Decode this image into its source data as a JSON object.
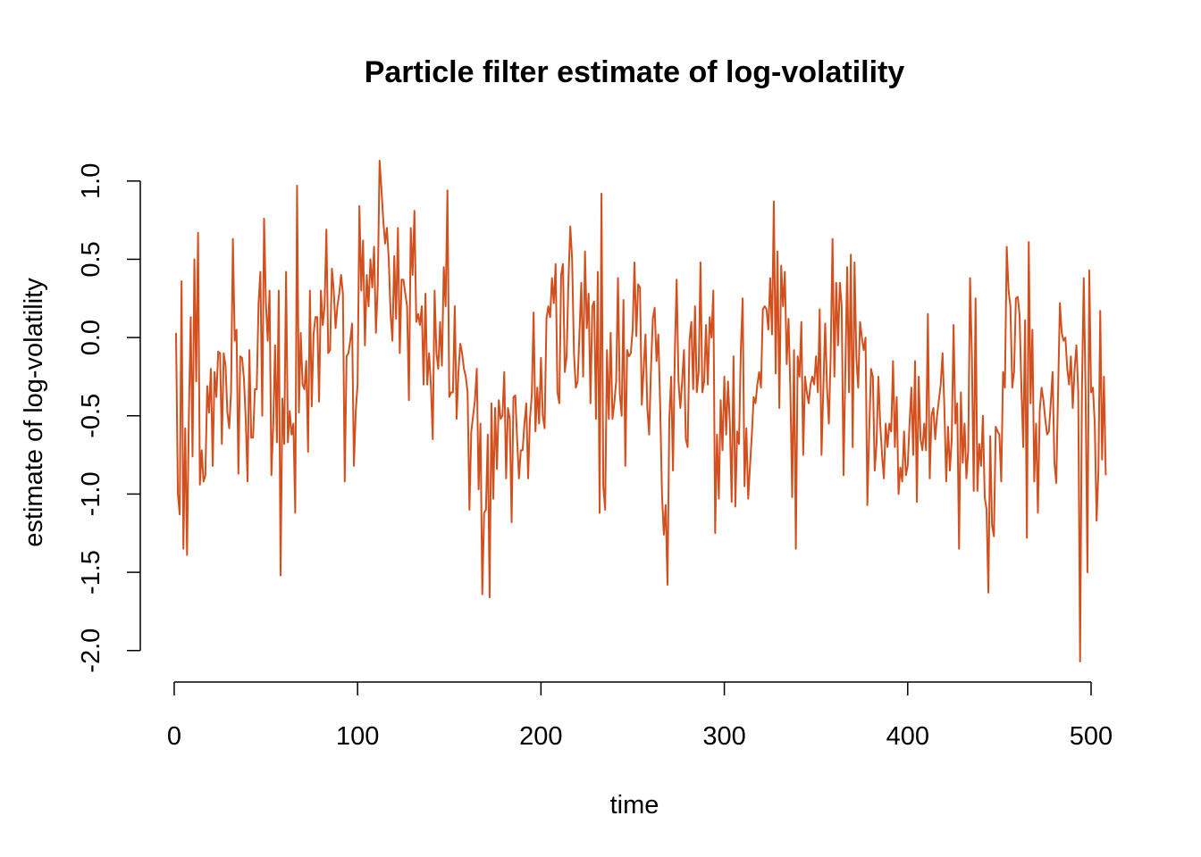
{
  "chart_data": {
    "type": "line",
    "title": "Particle filter estimate of log-volatility",
    "xlabel": "time",
    "ylabel": "estimate of log-volatility",
    "xlim": [
      1,
      500
    ],
    "ylim": [
      -2.07,
      1.13
    ],
    "x_ticks": [
      0,
      100,
      200,
      300,
      400,
      500
    ],
    "x_tick_labels": [
      "0",
      "100",
      "200",
      "300",
      "400",
      "500"
    ],
    "y_ticks": [
      -2.0,
      -1.5,
      -1.0,
      -0.5,
      0.0,
      0.5,
      1.0
    ],
    "y_tick_labels": [
      "-2.0",
      "-1.5",
      "-1.0",
      "-0.5",
      "0.0",
      "0.5",
      "1.0"
    ],
    "grid": false,
    "legend": "none",
    "series": [
      {
        "color": "#D2501E",
        "x_start": 1,
        "x_step": 1,
        "values": [
          0.03,
          -1.0,
          -1.13,
          0.36,
          -1.35,
          -0.58,
          -1.39,
          -0.5,
          0.13,
          -0.76,
          0.5,
          -0.28,
          0.67,
          -0.94,
          -0.72,
          -0.92,
          -0.88,
          -0.31,
          -0.48,
          -0.2,
          -0.82,
          -0.22,
          -0.38,
          -0.09,
          -0.1,
          -0.68,
          -0.1,
          -0.18,
          -0.48,
          -0.58,
          -0.35,
          0.63,
          -0.02,
          0.05,
          -0.87,
          -0.12,
          -0.13,
          -0.26,
          -0.52,
          -0.92,
          -0.08,
          -0.64,
          -0.64,
          -0.33,
          -0.33,
          0.22,
          0.42,
          -0.5,
          0.76,
          0.22,
          -0.02,
          0.3,
          -0.88,
          -0.56,
          -0.05,
          -0.67,
          0.3,
          -1.52,
          -0.39,
          -0.68,
          0.42,
          -0.67,
          -0.47,
          -0.62,
          -0.55,
          -1.12,
          0.97,
          -0.48,
          0.03,
          -0.3,
          -0.33,
          -0.15,
          -0.73,
          0.3,
          -0.44,
          0.02,
          0.13,
          0.13,
          -0.41,
          0.3,
          0.08,
          0.2,
          0.69,
          -0.1,
          -0.08,
          0.44,
          0.3,
          0.06,
          0.2,
          0.28,
          0.4,
          0.28,
          -0.92,
          -0.12,
          -0.1,
          -0.02,
          0.09,
          -0.82,
          -0.47,
          -0.3,
          0.84,
          0.3,
          0.62,
          -0.05,
          0.4,
          0.2,
          0.5,
          0.32,
          0.58,
          0.03,
          0.33,
          1.13,
          0.95,
          0.75,
          0.6,
          0.7,
          0.5,
          0.15,
          -0.02,
          0.52,
          0.12,
          0.7,
          -0.1,
          0.37,
          0.37,
          0.28,
          0.2,
          -0.4,
          0.7,
          0.4,
          0.81,
          0.1,
          0.15,
          0.08,
          0.2,
          -0.3,
          0.28,
          -0.3,
          -0.1,
          -0.31,
          -0.65,
          0.3,
          -0.1,
          -0.2,
          0.1,
          -0.18,
          0.45,
          0.2,
          0.94,
          -0.38,
          -0.35,
          -0.35,
          0.2,
          -0.52,
          -0.22,
          -0.04,
          -0.1,
          -0.2,
          -0.25,
          -0.35,
          -1.1,
          -0.6,
          -0.5,
          -0.4,
          -0.2,
          -0.97,
          -0.55,
          -1.64,
          -1.12,
          -1.1,
          -0.62,
          -1.66,
          -0.42,
          -1.03,
          -0.45,
          -0.84,
          -0.4,
          -0.52,
          -0.5,
          -0.22,
          -0.9,
          -0.45,
          -0.52,
          -1.18,
          -0.38,
          -0.37,
          -0.65,
          -0.9,
          -0.72,
          -0.72,
          -0.55,
          -0.42,
          -0.9,
          -0.52,
          -0.37,
          0.16,
          -0.6,
          -0.32,
          -0.55,
          -0.13,
          -0.5,
          -0.58,
          0.12,
          0.2,
          0.13,
          0.38,
          0.22,
          0.47,
          -0.35,
          -0.42,
          0.4,
          0.47,
          -0.22,
          -0.12,
          0.37,
          0.71,
          0.5,
          -0.1,
          -0.32,
          -0.28,
          0.03,
          0.35,
          -0.25,
          0.55,
          0.06,
          0.28,
          -0.42,
          0.2,
          0.23,
          -0.52,
          0.42,
          -1.12,
          0.92,
          -0.95,
          -1.1,
          -0.08,
          -0.52,
          0.03,
          -0.52,
          -0.42,
          -0.28,
          0.38,
          -0.36,
          -0.5,
          0.24,
          -0.82,
          -0.08,
          -0.12,
          -0.1,
          0.05,
          0.48,
          0.01,
          0.34,
          0.32,
          -0.43,
          -0.2,
          0.02,
          -0.45,
          -0.62,
          -0.2,
          0.12,
          0.19,
          -0.15,
          0.02,
          -0.43,
          -1.0,
          -1.26,
          -1.07,
          -1.58,
          -0.52,
          -0.25,
          -0.85,
          -0.1,
          0.37,
          -0.28,
          -0.45,
          -0.28,
          -0.08,
          -0.65,
          -0.7,
          -0.02,
          0.1,
          -0.33,
          0.2,
          -0.35,
          -0.22,
          0.48,
          -0.35,
          -0.28,
          0.08,
          -0.3,
          0.13,
          0.0,
          0.3,
          -1.25,
          -0.62,
          -1.03,
          -0.4,
          -0.72,
          -0.25,
          -0.62,
          -0.28,
          -0.55,
          -1.05,
          -0.12,
          -1.08,
          -0.6,
          -0.68,
          -0.08,
          0.25,
          -0.95,
          -0.58,
          -1.03,
          -0.82,
          -0.62,
          -0.38,
          -0.42,
          -0.3,
          -0.22,
          -0.32,
          0.18,
          0.2,
          0.18,
          0.05,
          0.38,
          0.02,
          0.87,
          -0.23,
          0.55,
          -0.45,
          0.46,
          0.2,
          0.42,
          -0.17,
          0.12,
          -0.33,
          -1.02,
          -0.08,
          -1.35,
          -0.12,
          -0.25,
          0.1,
          -0.75,
          -0.25,
          -0.35,
          -0.42,
          -0.3,
          -0.25,
          -0.3,
          -0.12,
          -0.35,
          0.18,
          -0.75,
          -0.32,
          0.09,
          -0.32,
          -0.55,
          -0.12,
          0.63,
          -0.25,
          0.35,
          -0.05,
          0.35,
          0.2,
          -0.88,
          -0.2,
          0.45,
          -0.35,
          0.53,
          -0.7,
          0.48,
          -0.13,
          -0.32,
          0.1,
          0.0,
          -0.08,
          0.0,
          -1.07,
          -0.6,
          -0.2,
          -0.25,
          -0.85,
          -0.68,
          -0.25,
          -0.55,
          -0.75,
          -0.9,
          -0.55,
          -0.7,
          -0.55,
          -0.6,
          -0.15,
          -0.7,
          -0.38,
          -1.0,
          -0.83,
          -0.92,
          -0.6,
          -0.88,
          -0.82,
          -0.55,
          -0.32,
          -0.75,
          -0.15,
          -1.05,
          -0.25,
          -0.65,
          -0.72,
          -0.55,
          -0.72,
          0.15,
          -0.9,
          -0.5,
          -0.45,
          -0.65,
          -0.5,
          -0.4,
          -0.3,
          -0.1,
          -0.45,
          -0.92,
          -0.57,
          -0.85,
          -0.65,
          0.08,
          -0.55,
          -0.42,
          -1.35,
          -0.35,
          -0.8,
          -0.55,
          -0.9,
          -0.72,
          0.38,
          -0.12,
          -0.98,
          0.25,
          -0.98,
          -0.68,
          -0.82,
          -0.5,
          -1.02,
          -1.1,
          -1.63,
          -0.63,
          -1.2,
          -1.27,
          -0.57,
          -0.6,
          -0.62,
          -0.92,
          -0.22,
          -0.32,
          0.58,
          0.3,
          0.2,
          -0.32,
          -0.22,
          0.25,
          0.26,
          0.14,
          -0.32,
          -0.7,
          0.11,
          -1.28,
          0.61,
          -0.42,
          0.05,
          -0.92,
          -0.55,
          -1.12,
          -0.47,
          -0.32,
          -0.4,
          -0.52,
          -0.62,
          -0.6,
          -0.42,
          -0.22,
          -0.8,
          -0.93,
          -0.35,
          0.22,
          0.03,
          -0.02,
          0.0,
          -0.2,
          -0.3,
          -0.12,
          -0.45,
          -0.2,
          -0.05,
          -0.35,
          -2.07,
          -0.35,
          0.38,
          -0.35,
          -1.5,
          0.43,
          -0.35,
          -0.32,
          -0.55,
          -1.17,
          -0.85,
          0.17,
          -0.78,
          -0.25,
          -0.88
        ]
      }
    ]
  }
}
